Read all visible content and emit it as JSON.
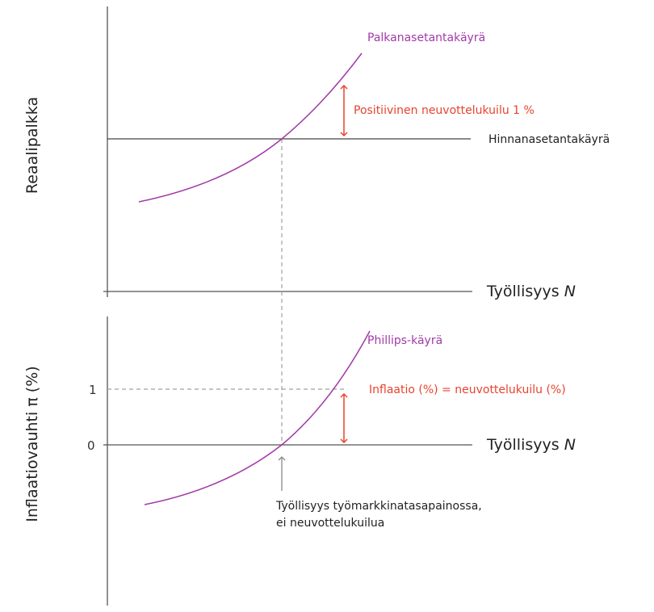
{
  "colors": {
    "curve": "#a23aa8",
    "annotation": "#e8432e",
    "axis": "#555555",
    "dashed": "#a0a0a0",
    "text": "#222222"
  },
  "top_panel": {
    "ylabel": "Reaalipalkka",
    "xlabel": "Työllisyys",
    "xlabel_var": "N",
    "wage_curve_label": "Palkanasetantakäyrä",
    "price_curve_label": "Hinnanasetantakäyrä",
    "gap_label": "Positiivinen neuvottelukuilu 1 %"
  },
  "bottom_panel": {
    "ylabel": "Inflaatiovauhti π (%)",
    "xlabel": "Työllisyys",
    "xlabel_var": "N",
    "tick_1": "1",
    "tick_0": "0",
    "phillips_label": "Phillips-käyrä",
    "inflation_label": "Inflaatio (%) = neuvottelukuilu (%)",
    "equilibrium_note_line1": "Työllisyys työmarkkinatasapainossa,",
    "equilibrium_note_line2": "ei neuvottelukuilua"
  }
}
